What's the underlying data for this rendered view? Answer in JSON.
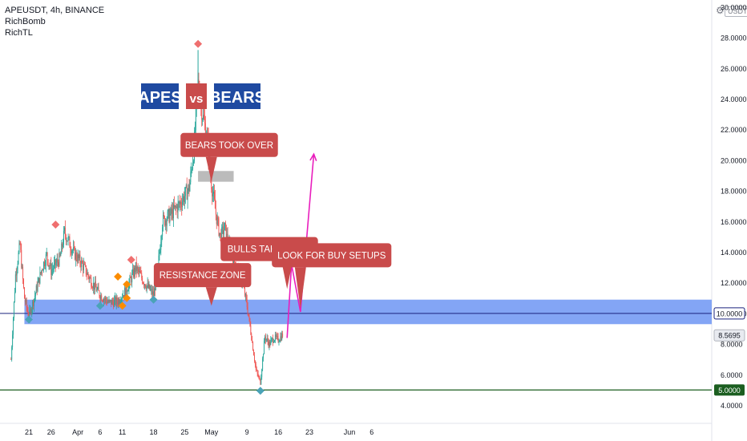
{
  "header": {
    "symbol_line": "APEUSDT, 4h, BINANCE",
    "indicators": [
      "RichBomb",
      "RichTL"
    ],
    "currency_badge": "USDT"
  },
  "icons": {
    "settings": "gear-icon"
  },
  "colors": {
    "bull": "#26a69a",
    "bear": "#ef5350",
    "zone": "#6d95f3",
    "label_red": "#c94b4b",
    "title_blue": "#1f4aa1",
    "projection": "#e91ebd",
    "support_line": "#1b5e20",
    "resistance_line": "#1a237e",
    "marker_red": "#ef6f6f",
    "marker_orange": "#fb8c00",
    "marker_teal": "#4aa3b8"
  },
  "chart_data": {
    "type": "candlestick",
    "title": "APES vs BEARS",
    "title_parts": {
      "left": "APES",
      "mid": "vs",
      "right": "BEARS"
    },
    "ylim": [
      3.3,
      30
    ],
    "xlim": [
      "2022-03-18",
      "2022-06-08"
    ],
    "x_ticks": [
      {
        "label": "21",
        "date": "2022-03-21"
      },
      {
        "label": "26",
        "date": "2022-03-26"
      },
      {
        "label": "Apr",
        "date": "2022-04-01"
      },
      {
        "label": "6",
        "date": "2022-04-06"
      },
      {
        "label": "11",
        "date": "2022-04-11"
      },
      {
        "label": "18",
        "date": "2022-04-18"
      },
      {
        "label": "25",
        "date": "2022-04-25"
      },
      {
        "label": "May",
        "date": "2022-05-01"
      },
      {
        "label": "9",
        "date": "2022-05-09"
      },
      {
        "label": "16",
        "date": "2022-05-16"
      },
      {
        "label": "23",
        "date": "2022-05-23"
      },
      {
        "label": "Jun",
        "date": "2022-06-01"
      },
      {
        "label": "6",
        "date": "2022-06-06"
      }
    ],
    "y_ticks": [
      "4.0000",
      "6.0000",
      "8.0000",
      "10.0000",
      "12.0000",
      "14.0000",
      "16.0000",
      "18.0000",
      "20.0000",
      "22.0000",
      "24.0000",
      "26.0000",
      "28.0000",
      "30.0000"
    ],
    "price_path": [
      [
        "2022-03-17",
        7.0
      ],
      [
        "2022-03-18",
        12.5
      ],
      [
        "2022-03-19",
        14.5
      ],
      [
        "2022-03-20",
        11.0
      ],
      [
        "2022-03-21",
        9.8
      ],
      [
        "2022-03-22",
        10.8
      ],
      [
        "2022-03-24",
        13.0
      ],
      [
        "2022-03-25",
        13.8
      ],
      [
        "2022-03-26",
        12.8
      ],
      [
        "2022-03-28",
        13.6
      ],
      [
        "2022-03-29",
        15.3
      ],
      [
        "2022-03-31",
        14.0
      ],
      [
        "2022-04-02",
        13.2
      ],
      [
        "2022-04-04",
        12.1
      ],
      [
        "2022-04-06",
        11.2
      ],
      [
        "2022-04-08",
        10.7
      ],
      [
        "2022-04-10",
        10.8
      ],
      [
        "2022-04-12",
        11.6
      ],
      [
        "2022-04-14",
        13.0
      ],
      [
        "2022-04-16",
        12.0
      ],
      [
        "2022-04-18",
        11.2
      ],
      [
        "2022-04-19",
        13.0
      ],
      [
        "2022-04-20",
        16.0
      ],
      [
        "2022-04-22",
        16.5
      ],
      [
        "2022-04-24",
        17.2
      ],
      [
        "2022-04-26",
        18.2
      ],
      [
        "2022-04-27",
        20.5
      ],
      [
        "2022-04-28",
        25.0
      ],
      [
        "2022-04-29",
        23.0
      ],
      [
        "2022-04-30",
        21.5
      ],
      [
        "2022-05-01",
        18.5
      ],
      [
        "2022-05-02",
        16.5
      ],
      [
        "2022-05-03",
        15.0
      ],
      [
        "2022-05-04",
        15.6
      ],
      [
        "2022-05-05",
        14.3
      ],
      [
        "2022-05-06",
        13.5
      ],
      [
        "2022-05-07",
        12.8
      ],
      [
        "2022-05-08",
        12.0
      ],
      [
        "2022-05-09",
        10.5
      ],
      [
        "2022-05-10",
        8.5
      ],
      [
        "2022-05-11",
        6.3
      ],
      [
        "2022-05-12",
        5.5
      ],
      [
        "2022-05-13",
        8.5
      ],
      [
        "2022-05-14",
        8.0
      ],
      [
        "2022-05-15",
        8.4
      ],
      [
        "2022-05-16",
        8.3
      ],
      [
        "2022-05-17",
        8.6
      ]
    ],
    "spikes": [
      {
        "date": "2022-04-28",
        "high": 27.2
      }
    ],
    "last_price": "8.5695",
    "resistance_zone": {
      "from": 9.3,
      "to": 10.9,
      "start": "2022-03-20"
    },
    "resistance_level": "10.0000",
    "support_level": "5.0000",
    "bear_box": {
      "from": 18.6,
      "to": 19.3,
      "start": "2022-04-28",
      "end": "2022-05-06"
    },
    "projection": [
      [
        "2022-05-18",
        8.4
      ],
      [
        "2022-05-19",
        13.2
      ],
      [
        "2022-05-21",
        10.1
      ],
      [
        "2022-05-24",
        20.4
      ]
    ],
    "markers": [
      {
        "date": "2022-03-27",
        "price": 15.8,
        "type": "red"
      },
      {
        "date": "2022-04-13",
        "price": 13.5,
        "type": "red"
      },
      {
        "date": "2022-04-28",
        "price": 27.6,
        "type": "red"
      },
      {
        "date": "2022-04-10",
        "price": 12.4,
        "type": "orange"
      },
      {
        "date": "2022-04-11",
        "price": 10.5,
        "type": "orange"
      },
      {
        "date": "2022-04-12",
        "price": 11.9,
        "type": "orange"
      },
      {
        "date": "2022-04-12",
        "price": 11.0,
        "type": "orange"
      },
      {
        "date": "2022-03-21",
        "price": 9.6,
        "type": "teal"
      },
      {
        "date": "2022-04-06",
        "price": 10.5,
        "type": "teal"
      },
      {
        "date": "2022-04-18",
        "price": 10.9,
        "type": "teal"
      },
      {
        "date": "2022-05-12",
        "price": 4.95,
        "type": "teal"
      }
    ],
    "annotations": [
      {
        "id": "bears",
        "text": "BEARS TOOK OVER",
        "date": "2022-05-05",
        "price": 21.0,
        "tip": [
          "2022-05-01",
          18.6
        ]
      },
      {
        "id": "resistance",
        "text": "RESISTANCE ZONE",
        "date": "2022-04-29",
        "price": 12.5,
        "tip": [
          "2022-05-01",
          10.5
        ]
      },
      {
        "id": "bulls",
        "text": "BULLS TAKE OVER",
        "date": "2022-05-14",
        "price": 14.2,
        "tip": [
          "2022-05-18",
          11.6
        ]
      },
      {
        "id": "setups",
        "text": "LOOK FOR BUY SETUPS",
        "date": "2022-05-28",
        "price": 13.8,
        "tip": [
          "2022-05-21",
          10.3
        ]
      }
    ]
  }
}
